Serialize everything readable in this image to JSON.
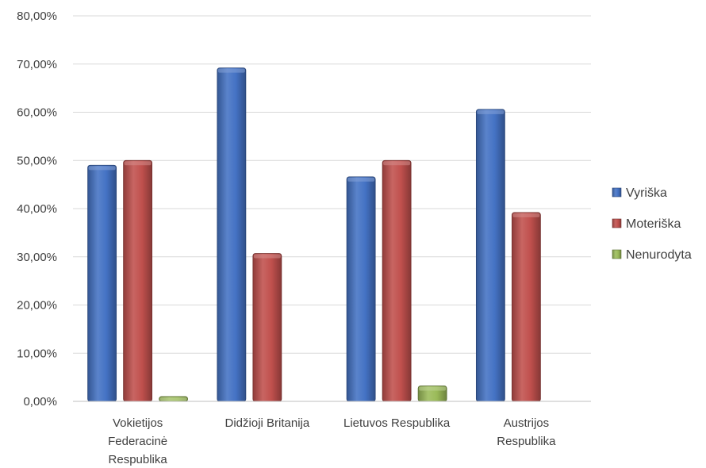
{
  "chart_data": {
    "type": "bar",
    "categories": [
      [
        "Vokietijos",
        "Federacinė",
        "Respublika"
      ],
      [
        "Didžioji Britanija"
      ],
      [
        "Lietuvos Respublika"
      ],
      [
        "Austrijos",
        "Respublika"
      ]
    ],
    "series": [
      {
        "name": "Vyriška",
        "color": "#4472c4",
        "values": [
          0.49,
          0.692,
          0.466,
          0.606
        ]
      },
      {
        "name": "Moteriška",
        "color": "#c0504d",
        "values": [
          0.5,
          0.307,
          0.5,
          0.392
        ]
      },
      {
        "name": "Nenurodyta",
        "color": "#9bbb59",
        "values": [
          0.01,
          0.0,
          0.032,
          0.0
        ]
      }
    ],
    "ylim": [
      0,
      0.8
    ],
    "yticks": [
      0,
      0.1,
      0.2,
      0.3,
      0.4,
      0.5,
      0.6,
      0.7,
      0.8
    ],
    "ytick_labels": [
      "0,00%",
      "10,00%",
      "20,00%",
      "30,00%",
      "40,00%",
      "50,00%",
      "60,00%",
      "70,00%",
      "80,00%"
    ],
    "grid": true,
    "legend_position": "right",
    "title": "",
    "xlabel": "",
    "ylabel": ""
  }
}
